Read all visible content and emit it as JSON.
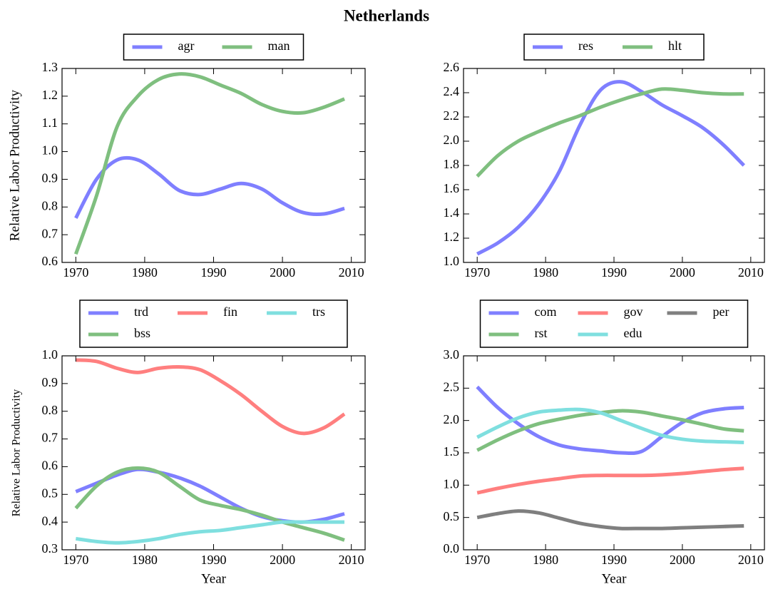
{
  "title": "Netherlands",
  "chart_data": [
    {
      "type": "line",
      "ylabel": "Relative Labor Productivity",
      "x": [
        1970,
        1973,
        1976,
        1979,
        1982,
        1985,
        1988,
        1991,
        1994,
        1997,
        2000,
        2003,
        2006,
        2009
      ],
      "xlim": [
        1968,
        2012
      ],
      "xticks": [
        1970,
        1980,
        1990,
        2000,
        2010
      ],
      "ylim": [
        0.6,
        1.3
      ],
      "yticks": [
        0.6,
        0.7,
        0.8,
        0.9,
        {
          "value": 1,
          "label": "1.0"
        },
        1.1,
        1.2,
        1.3
      ],
      "legend_columns": 2,
      "series": [
        {
          "name": "agr",
          "color": "#7f7fff",
          "values": [
            0.76,
            0.9,
            0.97,
            0.97,
            0.92,
            0.86,
            0.845,
            0.865,
            0.885,
            0.865,
            0.815,
            0.78,
            0.775,
            0.795
          ]
        },
        {
          "name": "man",
          "color": "#7fbf7f",
          "values": [
            0.63,
            0.84,
            1.09,
            1.2,
            1.26,
            1.28,
            1.27,
            1.24,
            1.21,
            1.17,
            1.145,
            1.14,
            1.16,
            1.19
          ]
        }
      ]
    },
    {
      "type": "line",
      "x": [
        1970,
        1973,
        1976,
        1979,
        1982,
        1985,
        1988,
        1991,
        1994,
        1997,
        2000,
        2003,
        2006,
        2009
      ],
      "xlim": [
        1968,
        2012
      ],
      "xticks": [
        1970,
        1980,
        1990,
        2000,
        2010
      ],
      "ylim": [
        1,
        2.6
      ],
      "yticks": [
        {
          "value": 1,
          "label": "1.0"
        },
        1.2,
        1.4,
        1.6,
        1.8,
        {
          "value": 2,
          "label": "2.0"
        },
        2.2,
        2.4,
        2.6
      ],
      "legend_columns": 2,
      "series": [
        {
          "name": "res",
          "color": "#7f7fff",
          "values": [
            1.07,
            1.16,
            1.29,
            1.48,
            1.75,
            2.13,
            2.42,
            2.49,
            2.41,
            2.3,
            2.21,
            2.11,
            1.97,
            1.8
          ]
        },
        {
          "name": "hlt",
          "color": "#7fbf7f",
          "values": [
            1.71,
            1.88,
            2.0,
            2.08,
            2.15,
            2.21,
            2.28,
            2.34,
            2.39,
            2.43,
            2.42,
            2.4,
            2.39,
            2.39
          ]
        }
      ]
    },
    {
      "type": "line",
      "ylabel": "Relative Labor Productivity",
      "xlabel": "Year",
      "x": [
        1970,
        1973,
        1976,
        1979,
        1982,
        1985,
        1988,
        1991,
        1994,
        1997,
        2000,
        2003,
        2006,
        2009
      ],
      "xlim": [
        1968,
        2012
      ],
      "xticks": [
        1970,
        1980,
        1990,
        2000,
        2010
      ],
      "ylim": [
        0.3,
        1
      ],
      "yticks": [
        0.3,
        0.4,
        0.5,
        0.6,
        0.7,
        0.8,
        0.9,
        {
          "value": 1,
          "label": "1.0"
        }
      ],
      "legend_columns": 3,
      "series": [
        {
          "name": "trd",
          "color": "#7f7fff",
          "values": [
            0.51,
            0.54,
            0.57,
            0.59,
            0.58,
            0.56,
            0.53,
            0.49,
            0.45,
            0.42,
            0.405,
            0.4,
            0.41,
            0.43
          ]
        },
        {
          "name": "bss",
          "color": "#7fbf7f",
          "values": [
            0.45,
            0.53,
            0.58,
            0.595,
            0.58,
            0.53,
            0.48,
            0.46,
            0.445,
            0.425,
            0.4,
            0.38,
            0.36,
            0.335
          ]
        },
        {
          "name": "fin",
          "color": "#ff7f7f",
          "values": [
            0.985,
            0.98,
            0.955,
            0.94,
            0.955,
            0.96,
            0.95,
            0.91,
            0.86,
            0.8,
            0.745,
            0.72,
            0.74,
            0.79
          ]
        },
        {
          "name": "trs",
          "color": "#7fdfdf",
          "values": [
            0.34,
            0.33,
            0.325,
            0.33,
            0.34,
            0.355,
            0.365,
            0.37,
            0.38,
            0.39,
            0.4,
            0.4,
            0.4,
            0.4
          ]
        }
      ]
    },
    {
      "type": "line",
      "xlabel": "Year",
      "x": [
        1970,
        1973,
        1976,
        1979,
        1982,
        1985,
        1988,
        1991,
        1994,
        1997,
        2000,
        2003,
        2006,
        2009
      ],
      "xlim": [
        1968,
        2012
      ],
      "xticks": [
        1970,
        1980,
        1990,
        2000,
        2010
      ],
      "ylim": [
        0,
        3
      ],
      "yticks": [
        {
          "value": 0,
          "label": "0.0"
        },
        0.5,
        {
          "value": 1,
          "label": "1.0"
        },
        1.5,
        {
          "value": 2,
          "label": "2.0"
        },
        2.5,
        {
          "value": 3,
          "label": "3.0"
        }
      ],
      "legend_columns": 3,
      "series": [
        {
          "name": "com",
          "color": "#7f7fff",
          "values": [
            2.52,
            2.2,
            1.95,
            1.75,
            1.62,
            1.56,
            1.53,
            1.5,
            1.52,
            1.75,
            1.97,
            2.12,
            2.18,
            2.2
          ]
        },
        {
          "name": "rst",
          "color": "#7fbf7f",
          "values": [
            1.54,
            1.7,
            1.84,
            1.95,
            2.02,
            2.08,
            2.12,
            2.15,
            2.13,
            2.07,
            2.01,
            1.94,
            1.87,
            1.84
          ]
        },
        {
          "name": "gov",
          "color": "#ff7f7f",
          "values": [
            0.88,
            0.95,
            1.01,
            1.06,
            1.1,
            1.14,
            1.15,
            1.15,
            1.15,
            1.16,
            1.18,
            1.21,
            1.24,
            1.26
          ]
        },
        {
          "name": "edu",
          "color": "#7fdfdf",
          "values": [
            1.74,
            1.9,
            2.04,
            2.13,
            2.16,
            2.17,
            2.12,
            2.0,
            1.88,
            1.77,
            1.71,
            1.68,
            1.67,
            1.66
          ]
        },
        {
          "name": "per",
          "color": "#7f7f7f",
          "values": [
            0.5,
            0.56,
            0.6,
            0.57,
            0.49,
            0.41,
            0.36,
            0.33,
            0.33,
            0.33,
            0.34,
            0.35,
            0.36,
            0.37
          ]
        }
      ]
    }
  ]
}
